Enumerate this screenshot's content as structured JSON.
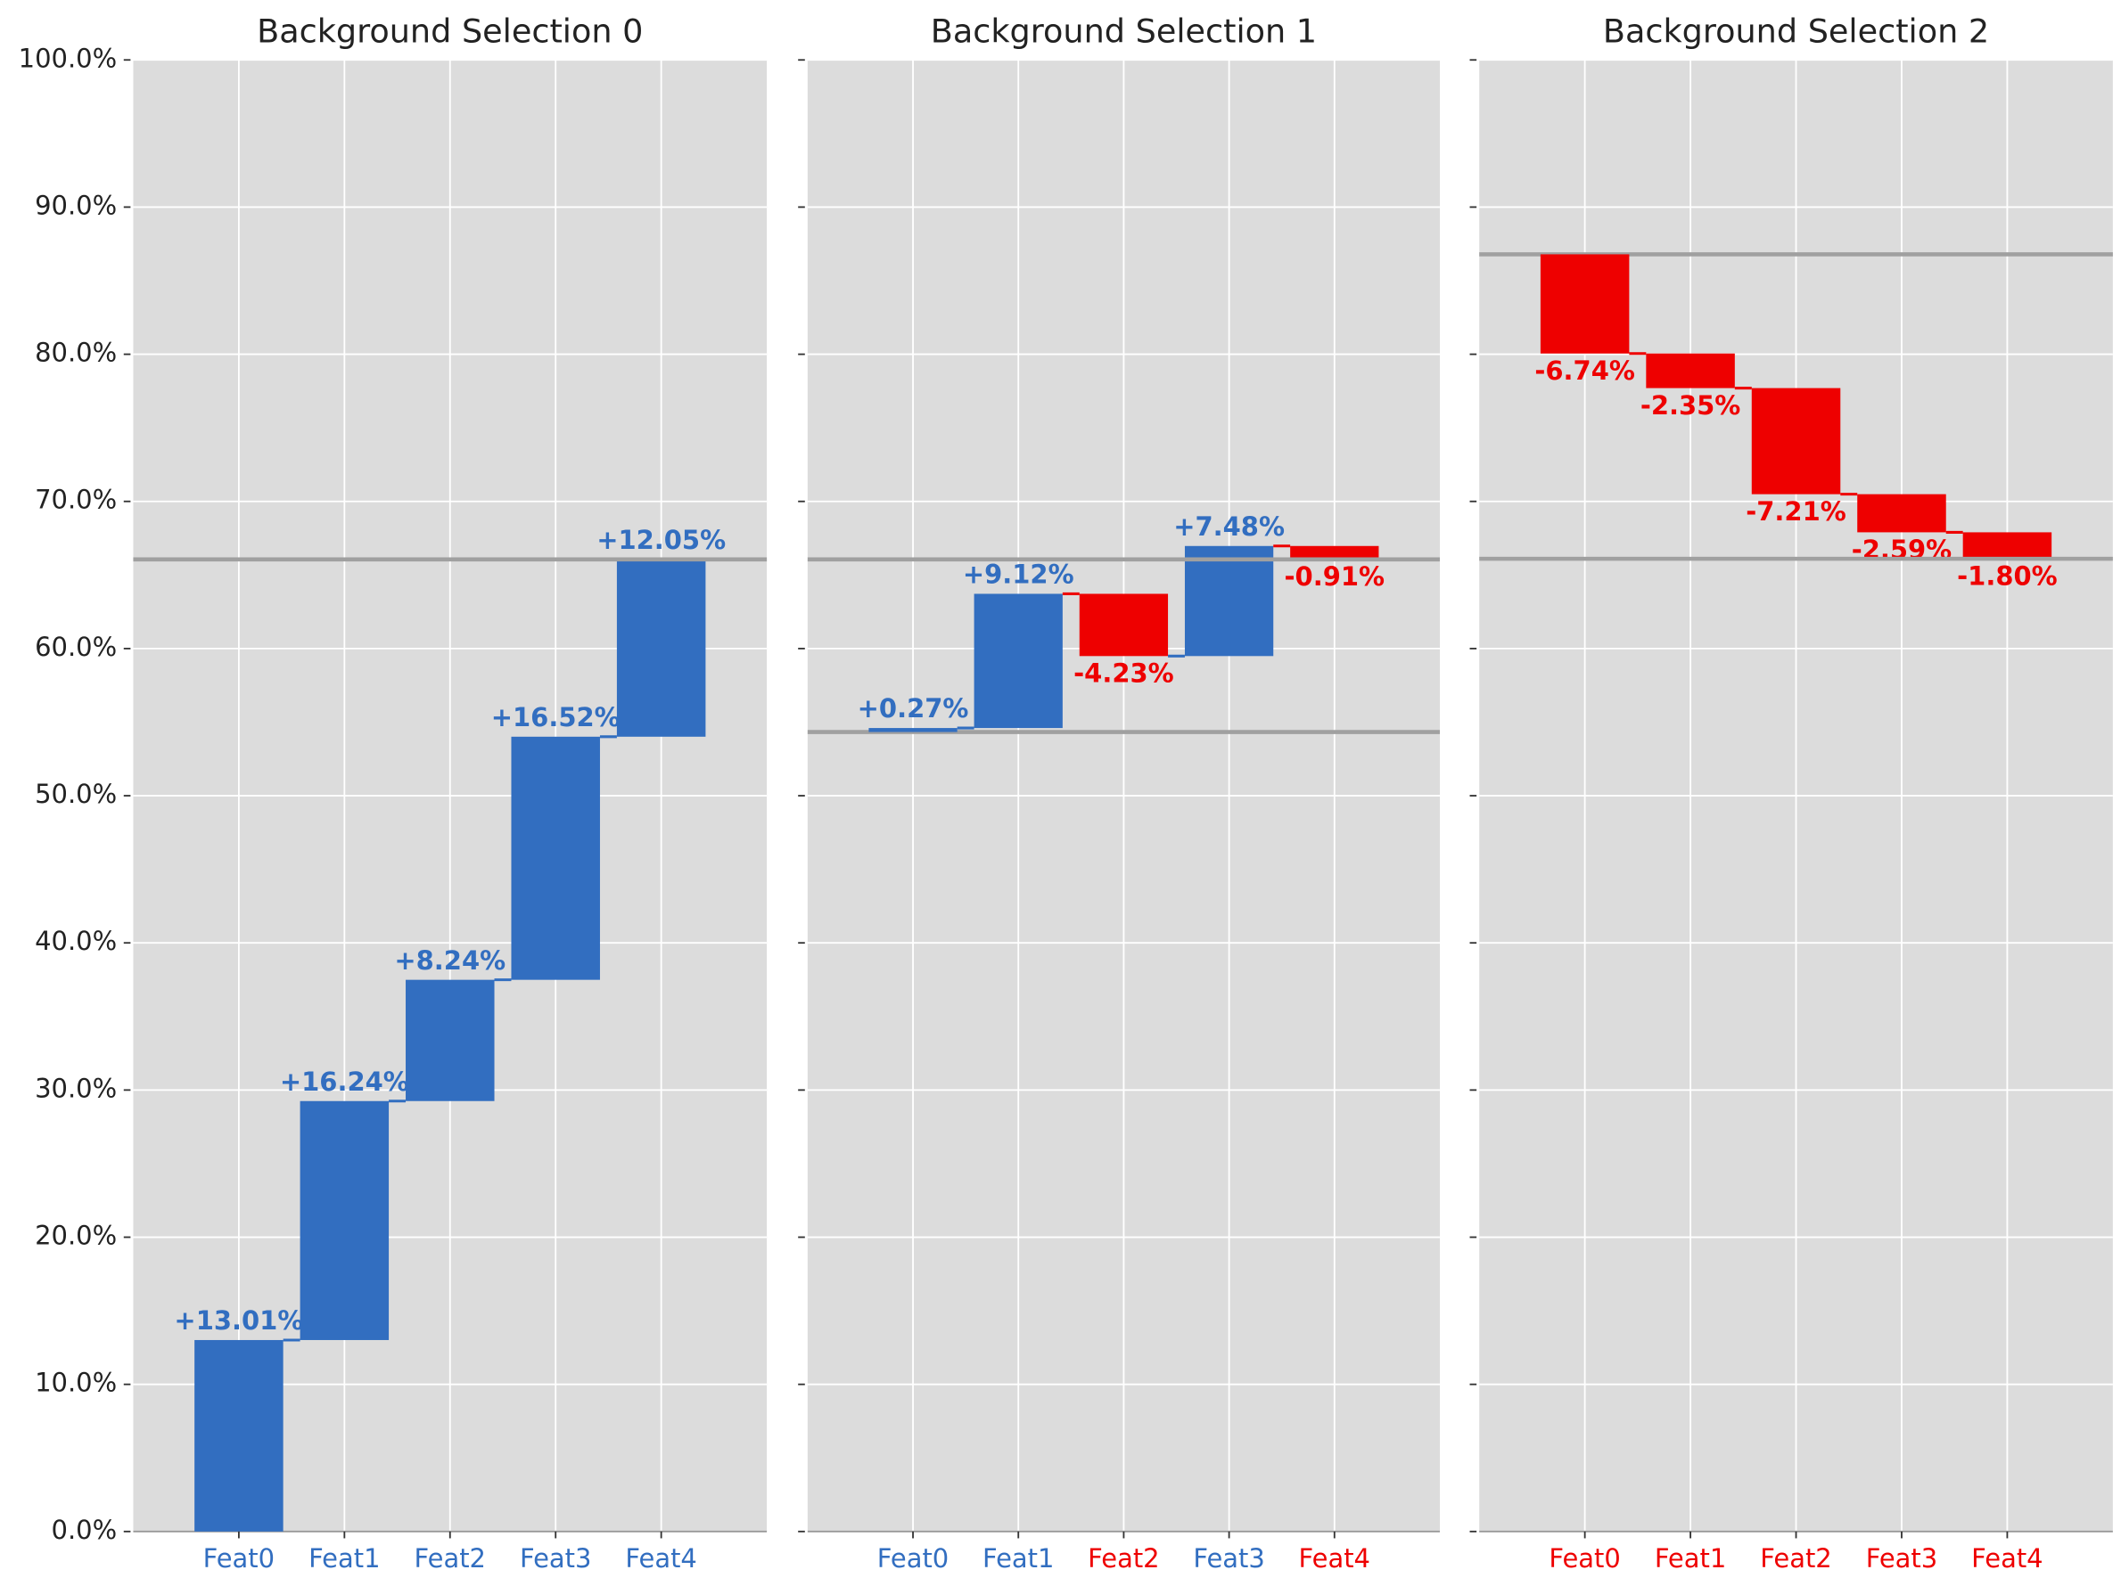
{
  "chart_data": [
    {
      "type": "waterfall",
      "title": "Background Selection 0",
      "categories": [
        "Feat0",
        "Feat1",
        "Feat2",
        "Feat3",
        "Feat4"
      ],
      "values": [
        13.01,
        16.24,
        8.24,
        16.52,
        12.05
      ],
      "value_labels": [
        "+13.01%",
        "+16.24%",
        "+8.24%",
        "+16.52%",
        "+12.05%"
      ],
      "base": 0,
      "colors": {
        "increase": "#326ec0",
        "decrease": "#ee0000"
      },
      "ylim": [
        0,
        100
      ],
      "yticks": [
        {
          "value": 0,
          "label": "0.0%"
        },
        {
          "value": 10,
          "label": "10.0%"
        },
        {
          "value": 20,
          "label": "20.0%"
        },
        {
          "value": 30,
          "label": "30.0%"
        },
        {
          "value": 40,
          "label": "40.0%"
        },
        {
          "value": 50,
          "label": "50.0%"
        },
        {
          "value": 60,
          "label": "60.0%"
        },
        {
          "value": 70,
          "label": "70.0%"
        },
        {
          "value": 80,
          "label": "80.0%"
        },
        {
          "value": 90,
          "label": "90.0%"
        },
        {
          "value": 100,
          "label": "100.0%"
        }
      ],
      "grid": true
    },
    {
      "type": "waterfall",
      "title": "Background Selection 1",
      "categories": [
        "Feat0",
        "Feat1",
        "Feat2",
        "Feat3",
        "Feat4"
      ],
      "values": [
        0.27,
        9.12,
        -4.23,
        7.48,
        -0.91
      ],
      "value_labels": [
        "+0.27%",
        "+9.12%",
        "-4.23%",
        "+7.48%",
        "-0.91%"
      ],
      "base": 54.33,
      "colors": {
        "increase": "#326ec0",
        "decrease": "#ee0000"
      },
      "ylim": [
        0,
        100
      ],
      "yticks": [
        0,
        10,
        20,
        30,
        40,
        50,
        60,
        70,
        80,
        90,
        100
      ],
      "grid": true
    },
    {
      "type": "waterfall",
      "title": "Background Selection 2",
      "categories": [
        "Feat0",
        "Feat1",
        "Feat2",
        "Feat3",
        "Feat4"
      ],
      "values": [
        -6.74,
        -2.35,
        -7.21,
        -2.59,
        -1.8
      ],
      "value_labels": [
        "-6.74%",
        "-2.35%",
        "-7.21%",
        "-2.59%",
        "-1.80%"
      ],
      "base": 86.79,
      "colors": {
        "increase": "#326ec0",
        "decrease": "#ee0000"
      },
      "ylim": [
        0,
        100
      ],
      "yticks": [
        0,
        10,
        20,
        30,
        40,
        50,
        60,
        70,
        80,
        90,
        100
      ],
      "grid": true
    }
  ]
}
